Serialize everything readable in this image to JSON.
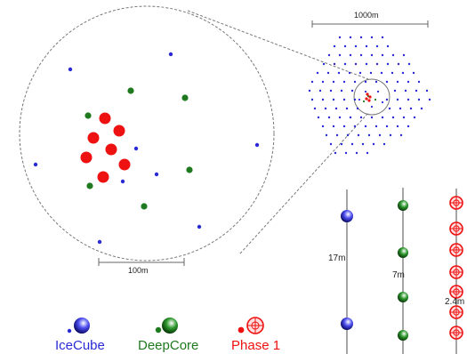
{
  "scalebars": {
    "overview": "1000m",
    "zoom": "100m"
  },
  "spacings": {
    "icecube": "17m",
    "deepcore": "7m",
    "phase1": "2.4m"
  },
  "legend": {
    "icecube": "IceCube",
    "deepcore": "DeepCore",
    "phase1": "Phase 1"
  },
  "colors": {
    "icecube": "#2a2ad6",
    "deepcore": "#1f7a1f",
    "phase1": "#ee1111",
    "line": "#777777"
  }
}
